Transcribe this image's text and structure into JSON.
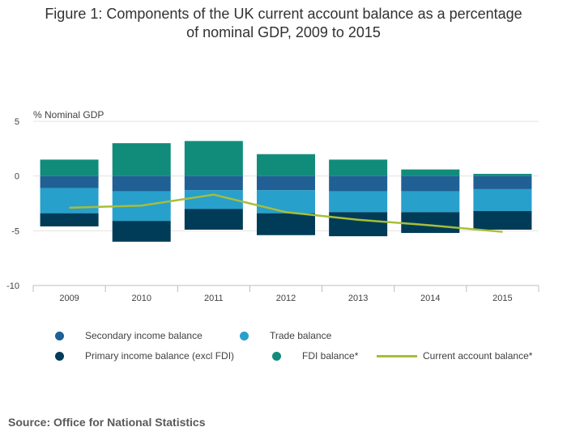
{
  "title": {
    "line1": "Figure 1: Components of the UK current account balance as a percentage",
    "line2": "of nominal GDP, 2009 to 2015"
  },
  "source": "Source: Office for National Statistics",
  "chart_data": {
    "type": "bar",
    "stacked": true,
    "ylabel": "% Nominal GDP",
    "ylim": [
      -10,
      5
    ],
    "yticks": [
      5,
      0,
      -5,
      -10
    ],
    "categories": [
      "2009",
      "2010",
      "2011",
      "2012",
      "2013",
      "2014",
      "2015"
    ],
    "series": [
      {
        "name": "Secondary income balance",
        "color": "#206095",
        "values": [
          -1.1,
          -1.4,
          -1.3,
          -1.3,
          -1.4,
          -1.4,
          -1.2
        ]
      },
      {
        "name": "Trade balance",
        "color": "#27a0cc",
        "values": [
          -2.3,
          -2.7,
          -1.7,
          -2.1,
          -1.9,
          -1.9,
          -2.0
        ]
      },
      {
        "name": "Primary income balance (excl FDI)",
        "color": "#003c57",
        "values": [
          -1.2,
          -1.9,
          -1.9,
          -2.0,
          -2.2,
          -1.9,
          -1.7
        ]
      },
      {
        "name": "FDI balance*",
        "color": "#118c7b",
        "values": [
          1.5,
          3.0,
          3.2,
          2.0,
          1.5,
          0.6,
          0.2
        ]
      }
    ],
    "line_series": {
      "name": "Current account balance*",
      "color": "#a8bd3a",
      "values": [
        -2.9,
        -2.7,
        -1.7,
        -3.3,
        -4.0,
        -4.5,
        -5.1
      ]
    },
    "grid": true,
    "legend_position": "bottom"
  }
}
